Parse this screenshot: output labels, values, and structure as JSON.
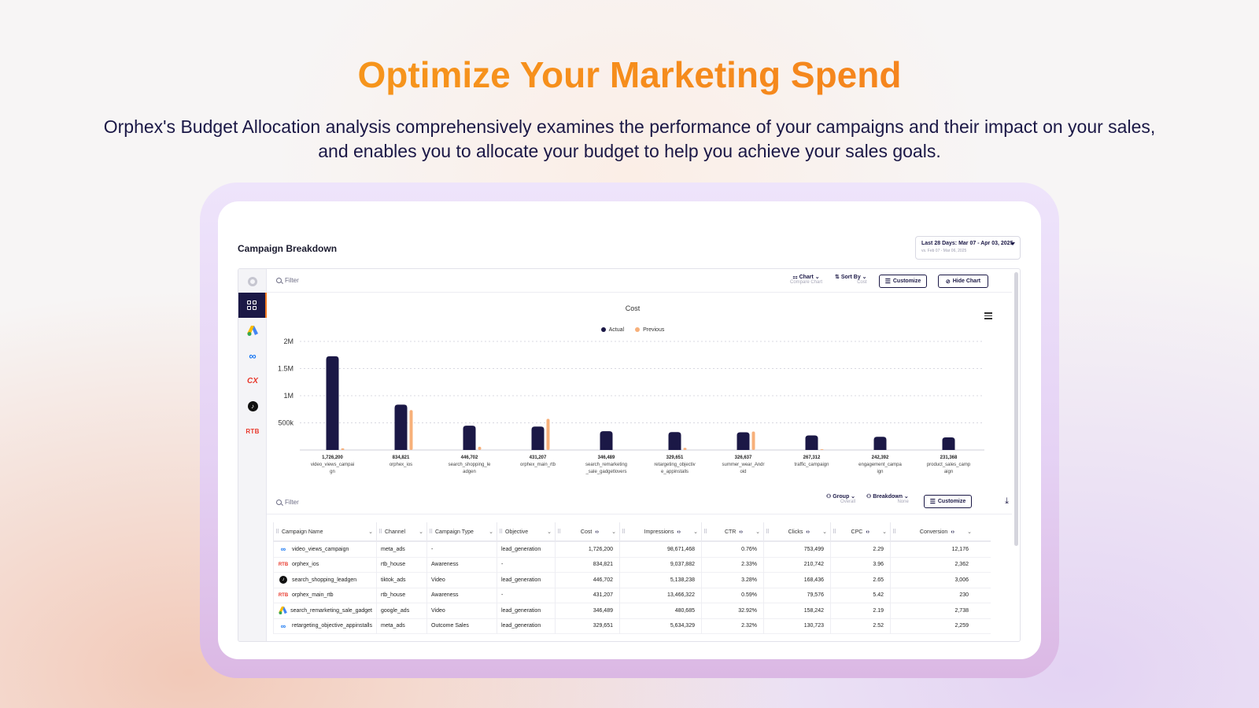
{
  "hero": {
    "title": "Optimize Your Marketing Spend",
    "subtitle": "Orphex's Budget Allocation analysis comprehensively examines the performance of your campaigns and their impact on your sales, and enables you to allocate your budget to help you achieve your sales goals."
  },
  "colors": {
    "accent": "#f47a1f",
    "navy": "#1b1846",
    "previous": "#f7b07a"
  },
  "card": {
    "title": "Campaign Breakdown",
    "date_range": "Last 28 Days: Mar 07 - Apr 03, 2025",
    "date_compare": "vs. Feb 07 - Mar 06, 2025"
  },
  "sidebar": {
    "items": [
      {
        "icon": "circle-icon"
      },
      {
        "icon": "grid-icon"
      },
      {
        "icon": "google-ads-icon"
      },
      {
        "icon": "meta-icon",
        "glyph": "∞"
      },
      {
        "icon": "cx-icon",
        "glyph": "CX"
      },
      {
        "icon": "tiktok-icon",
        "glyph": "♪"
      },
      {
        "icon": "rtb-icon",
        "glyph": "RTB"
      }
    ]
  },
  "toolbar": {
    "filter_placeholder": "Filter",
    "chart_label": "Chart",
    "chart_sub": "Compare Chart",
    "sortby_label": "Sort By",
    "sortby_sub": "Cost",
    "customize_label": "Customize",
    "hide_chart_label": "Hide Chart"
  },
  "table_toolbar": {
    "filter_placeholder": "Filter",
    "group_label": "Group",
    "group_sub": "Overall",
    "breakdown_label": "Breakdown",
    "breakdown_sub": "None",
    "customize_label": "Customize"
  },
  "chart_data": {
    "type": "bar",
    "title": "Cost",
    "categories": [
      "video_views_campaign",
      "orphex_ios",
      "search_shopping_leadgen",
      "orphex_main_rtb",
      "search_remarketing_sale_gadgetlovers",
      "retargeting_objective_appinstalls",
      "summer_wear_Android",
      "traffic_campaign",
      "engagement_campaign",
      "product_sales_campaign"
    ],
    "category_labels": [
      [
        "video_views_campai",
        "gn"
      ],
      [
        "orphex_ios"
      ],
      [
        "search_shopping_le",
        "adgen"
      ],
      [
        "orphex_main_rtb"
      ],
      [
        "search_remarketing",
        "_sale_gadgetlovers"
      ],
      [
        "retargeting_objectiv",
        "e_appinstalls"
      ],
      [
        "summer_wear_Andr",
        "oid"
      ],
      [
        "traffic_campaign"
      ],
      [
        "engagement_campa",
        "ign"
      ],
      [
        "product_sales_camp",
        "aign"
      ]
    ],
    "value_labels": [
      "1,726,200",
      "834,821",
      "446,702",
      "431,207",
      "346,489",
      "329,651",
      "326,637",
      "267,312",
      "242,392",
      "231,368"
    ],
    "series": [
      {
        "name": "Actual",
        "color": "#1b1846",
        "values": [
          1726200,
          834821,
          446702,
          431207,
          346489,
          329651,
          326637,
          267312,
          242392,
          231368
        ]
      },
      {
        "name": "Previous",
        "color": "#f7b07a",
        "values": [
          30000,
          735000,
          60000,
          575000,
          0,
          40000,
          340000,
          15000,
          0,
          0
        ]
      }
    ],
    "yticks": [
      "2M",
      "1.5M",
      "1M",
      "500k"
    ],
    "ytick_values": [
      2000000,
      1500000,
      1000000,
      500000
    ],
    "ylim": [
      0,
      2000000
    ],
    "grid": true,
    "legend_position": "top-center"
  },
  "table": {
    "columns": [
      "Campaign Name",
      "Channel",
      "Campaign Type",
      "Objective",
      "Cost",
      "Impressions",
      "CTR",
      "Clicks",
      "CPC",
      "Conversion"
    ],
    "rows": [
      {
        "icon": "meta",
        "name": "video_views_campaign",
        "channel": "meta_ads",
        "type": "-",
        "objective": "lead_generation",
        "cost": "1,726,200",
        "impressions": "98,671,468",
        "ctr": "0.76%",
        "clicks": "753,499",
        "cpc": "2.29",
        "conversion": "12,176"
      },
      {
        "icon": "rtb",
        "name": "orphex_ios",
        "channel": "rtb_house",
        "type": "Awareness",
        "objective": "-",
        "cost": "834,821",
        "impressions": "9,037,882",
        "ctr": "2.33%",
        "clicks": "210,742",
        "cpc": "3.96",
        "conversion": "2,362"
      },
      {
        "icon": "tiktok",
        "name": "search_shopping_leadgen",
        "channel": "tiktok_ads",
        "type": "Video",
        "objective": "lead_generation",
        "cost": "446,702",
        "impressions": "5,138,238",
        "ctr": "3.28%",
        "clicks": "168,436",
        "cpc": "2.65",
        "conversion": "3,006"
      },
      {
        "icon": "rtb",
        "name": "orphex_main_rtb",
        "channel": "rtb_house",
        "type": "Awareness",
        "objective": "-",
        "cost": "431,207",
        "impressions": "13,466,322",
        "ctr": "0.59%",
        "clicks": "79,576",
        "cpc": "5.42",
        "conversion": "230"
      },
      {
        "icon": "google",
        "name": "search_remarketing_sale_gadget",
        "channel": "google_ads",
        "type": "Video",
        "objective": "lead_generation",
        "cost": "346,489",
        "impressions": "480,685",
        "ctr": "32.92%",
        "clicks": "158,242",
        "cpc": "2.19",
        "conversion": "2,738"
      },
      {
        "icon": "meta",
        "name": "retargeting_objective_appinstalls",
        "channel": "meta_ads",
        "type": "Outcome Sales",
        "objective": "lead_generation",
        "cost": "329,651",
        "impressions": "5,634,329",
        "ctr": "2.32%",
        "clicks": "130,723",
        "cpc": "2.52",
        "conversion": "2,259"
      }
    ]
  }
}
